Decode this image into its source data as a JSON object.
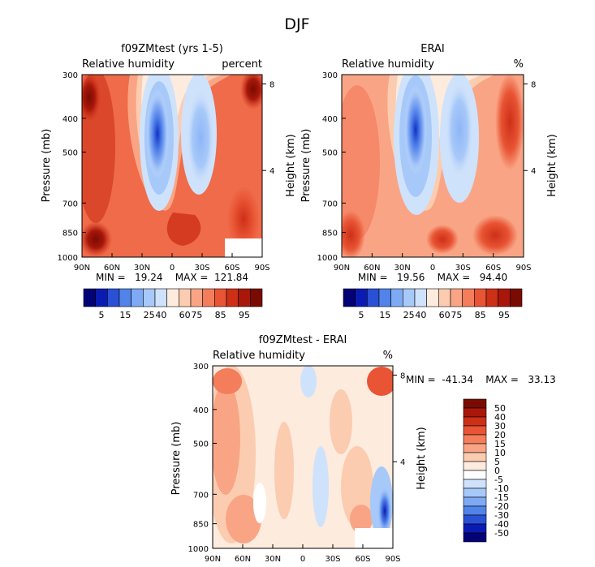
{
  "page_title": "DJF",
  "chart_data": [
    {
      "type": "heatmap",
      "title": "f09ZMtest (yrs 1-5)",
      "left_label": "Relative humidity",
      "right_label": "percent",
      "xlabel": "",
      "ylabel": "Pressure (mb)",
      "y2label": "Height (km)",
      "x_ticks": [
        "90N",
        "60N",
        "30N",
        "0",
        "30S",
        "60S",
        "90S"
      ],
      "y_ticks": [
        "300",
        "400",
        "500",
        "700",
        "850",
        "1000"
      ],
      "y_tick_values": [
        300,
        400,
        500,
        700,
        850,
        1000
      ],
      "y2_ticks": [
        "8",
        "4"
      ],
      "ylim": [
        1000,
        300
      ],
      "stats": "MIN =   19.24    MAX =  121.84",
      "colorbar": {
        "labels": [
          "5",
          "15",
          "25",
          "40",
          "60",
          "75",
          "85",
          "95"
        ],
        "colors": [
          "#030277",
          "#0a1bb4",
          "#2a50d6",
          "#5183e9",
          "#7eaaf5",
          "#a7c9f9",
          "#cfe2fb",
          "#fdebde",
          "#fcccb0",
          "#f9a585",
          "#f47d5c",
          "#e85434",
          "#cd2f17",
          "#a8170a",
          "#7a0b03"
        ]
      }
    },
    {
      "type": "heatmap",
      "title": "ERAI",
      "left_label": "Relative humidity",
      "right_label": "%",
      "xlabel": "",
      "ylabel": "Pressure (mb)",
      "y2label": "Height (km)",
      "x_ticks": [
        "90N",
        "60N",
        "30N",
        "0",
        "30S",
        "60S",
        "90S"
      ],
      "y_ticks": [
        "300",
        "400",
        "500",
        "700",
        "850",
        "1000"
      ],
      "y_tick_values": [
        300,
        400,
        500,
        700,
        850,
        1000
      ],
      "y2_ticks": [
        "8",
        "4"
      ],
      "ylim": [
        1000,
        300
      ],
      "stats": "MIN =   19.56    MAX =   94.40",
      "colorbar": {
        "labels": [
          "5",
          "15",
          "25",
          "40",
          "60",
          "75",
          "85",
          "95"
        ],
        "colors": [
          "#030277",
          "#0a1bb4",
          "#2a50d6",
          "#5183e9",
          "#7eaaf5",
          "#a7c9f9",
          "#cfe2fb",
          "#fdebde",
          "#fcccb0",
          "#f9a585",
          "#f47d5c",
          "#e85434",
          "#cd2f17",
          "#a8170a",
          "#7a0b03"
        ]
      }
    },
    {
      "type": "heatmap",
      "title": "f09ZMtest - ERAI",
      "left_label": "Relative humidity",
      "right_label": "%",
      "xlabel": "",
      "ylabel": "Pressure (mb)",
      "y2label": "Height (km)",
      "x_ticks": [
        "90N",
        "60N",
        "30N",
        "0",
        "30S",
        "60S",
        "90S"
      ],
      "y_ticks": [
        "300",
        "400",
        "500",
        "700",
        "850",
        "1000"
      ],
      "y_tick_values": [
        300,
        400,
        500,
        700,
        850,
        1000
      ],
      "y2_ticks": [
        "8",
        "4"
      ],
      "ylim": [
        1000,
        300
      ],
      "stats": "MIN =  -41.34    MAX =   33.13",
      "colorbar": {
        "labels": [
          "50",
          "40",
          "30",
          "20",
          "15",
          "10",
          "5",
          "0",
          "-5",
          "-10",
          "-15",
          "-20",
          "-30",
          "-40",
          "-50"
        ],
        "colors": [
          "#7a0b03",
          "#a8170a",
          "#cd2f17",
          "#e85434",
          "#f47d5c",
          "#f9a585",
          "#fcccb0",
          "#fdebde",
          "#ffffff",
          "#cfe2fb",
          "#a7c9f9",
          "#7eaaf5",
          "#5183e9",
          "#2a50d6",
          "#0a1bb4",
          "#030277"
        ]
      }
    }
  ]
}
